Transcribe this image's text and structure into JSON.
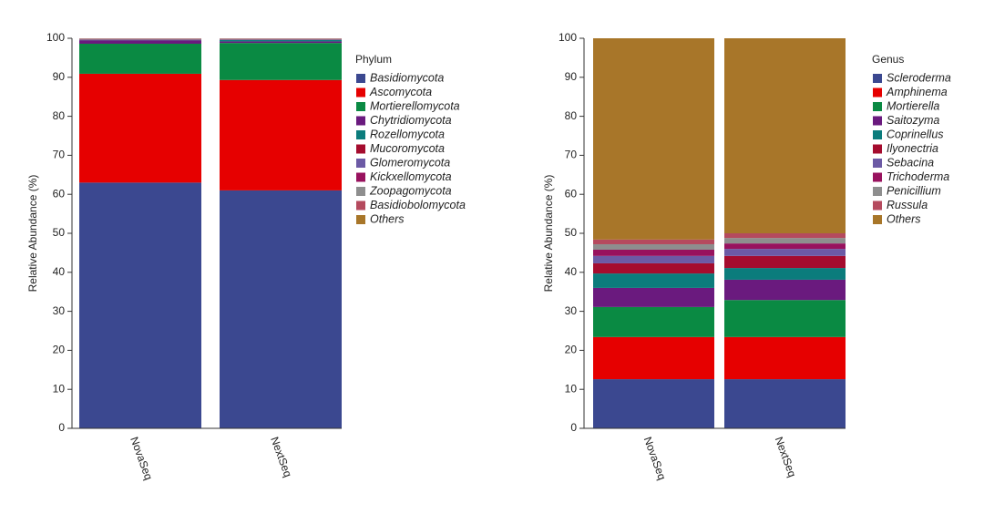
{
  "chart_data": [
    {
      "type": "bar",
      "stacked": true,
      "y_label": "Relative Abundance (%)",
      "legend_title": "Phylum",
      "categories": [
        "NovaSeq",
        "NextSeq"
      ],
      "ylim": [
        0,
        100
      ],
      "yticks": [
        0,
        10,
        20,
        30,
        40,
        50,
        60,
        70,
        80,
        90,
        100
      ],
      "series": [
        {
          "name": "Basidiomycota",
          "color": "#3b4890",
          "values": [
            63,
            61
          ]
        },
        {
          "name": "Ascomycota",
          "color": "#e60000",
          "values": [
            27.9,
            28.3
          ]
        },
        {
          "name": "Mortierellomycota",
          "color": "#0a8a43",
          "values": [
            7.7,
            9.5
          ]
        },
        {
          "name": "Chytridiomycota",
          "color": "#6a1a7e",
          "values": [
            0.9,
            0.4
          ]
        },
        {
          "name": "Rozellomycota",
          "color": "#0b7c7c",
          "values": [
            0.1,
            0.4
          ]
        },
        {
          "name": "Mucoromycota",
          "color": "#a50c2e",
          "values": [
            0.1,
            0.1
          ]
        },
        {
          "name": "Glomeromycota",
          "color": "#6c5aa5",
          "values": [
            0.1,
            0.1
          ]
        },
        {
          "name": "Kickxellomycota",
          "color": "#98125e",
          "values": [
            0.05,
            0.05
          ]
        },
        {
          "name": "Zoopagomycota",
          "color": "#8e8e8e",
          "values": [
            0.05,
            0.05
          ]
        },
        {
          "name": "Basidiobolomycota",
          "color": "#b54a5e",
          "values": [
            0.05,
            0.05
          ]
        },
        {
          "name": "Others",
          "color": "#a87629",
          "values": [
            0.05,
            0.05
          ]
        }
      ]
    },
    {
      "type": "bar",
      "stacked": true,
      "y_label": "Relative Abundance (%)",
      "legend_title": "Genus",
      "categories": [
        "NovaSeq",
        "NextSeq"
      ],
      "ylim": [
        0,
        100
      ],
      "yticks": [
        0,
        10,
        20,
        30,
        40,
        50,
        60,
        70,
        80,
        90,
        100
      ],
      "series": [
        {
          "name": "Scleroderma",
          "color": "#3b4890",
          "values": [
            12.6,
            12.6
          ]
        },
        {
          "name": "Amphinema",
          "color": "#e60000",
          "values": [
            10.8,
            10.8
          ]
        },
        {
          "name": "Mortierella",
          "color": "#0a8a43",
          "values": [
            7.7,
            9.5
          ]
        },
        {
          "name": "Saitozyma",
          "color": "#6a1a7e",
          "values": [
            4.9,
            5.2
          ]
        },
        {
          "name": "Coprinellus",
          "color": "#0b7c7c",
          "values": [
            3.7,
            3.0
          ]
        },
        {
          "name": "Ilyonectria",
          "color": "#a50c2e",
          "values": [
            2.6,
            3.1
          ]
        },
        {
          "name": "Sebacina",
          "color": "#6c5aa5",
          "values": [
            1.9,
            1.8
          ]
        },
        {
          "name": "Trichoderma",
          "color": "#98125e",
          "values": [
            1.6,
            1.4
          ]
        },
        {
          "name": "Penicillium",
          "color": "#8e8e8e",
          "values": [
            1.4,
            1.4
          ]
        },
        {
          "name": "Russula",
          "color": "#b54a5e",
          "values": [
            1.2,
            1.2
          ]
        },
        {
          "name": "Others",
          "color": "#a87629",
          "values": [
            51.6,
            50.0
          ]
        }
      ]
    }
  ]
}
